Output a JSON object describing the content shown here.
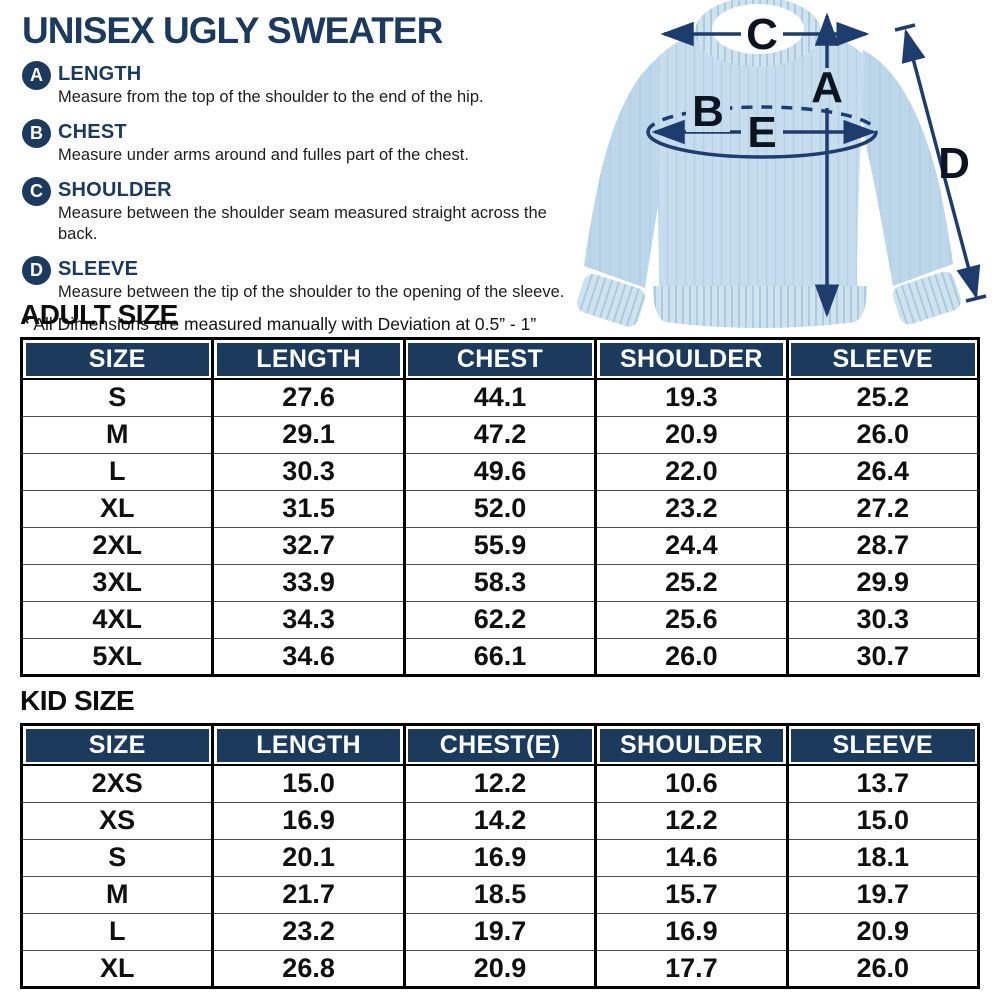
{
  "title": "UNISEX UGLY SWEATER",
  "measurements": [
    {
      "letter": "A",
      "term": "LENGTH",
      "description": "Measure from the top of the shoulder to the end of the hip."
    },
    {
      "letter": "B",
      "term": "CHEST",
      "description": "Measure under arms around and fulles part of the chest."
    },
    {
      "letter": "C",
      "term": "SHOULDER",
      "description": "Measure between the shoulder seam measured straight across the back."
    },
    {
      "letter": "D",
      "term": "SLEEVE",
      "description": "Measure between the tip of the shoulder to the opening of the sleeve."
    }
  ],
  "note_prefix": "*",
  "note": "All Dimensions are measured manually with Deviation at 0.5” - 1”",
  "diagram": {
    "labels": {
      "a": "A",
      "b": "B",
      "c": "C",
      "d": "D",
      "e": "E"
    }
  },
  "adult": {
    "heading": "ADULT SIZE",
    "headers": [
      "SIZE",
      "LENGTH",
      "CHEST",
      "SHOULDER",
      "SLEEVE"
    ],
    "rows": [
      [
        "S",
        "27.6",
        "44.1",
        "19.3",
        "25.2"
      ],
      [
        "M",
        "29.1",
        "47.2",
        "20.9",
        "26.0"
      ],
      [
        "L",
        "30.3",
        "49.6",
        "22.0",
        "26.4"
      ],
      [
        "XL",
        "31.5",
        "52.0",
        "23.2",
        "27.2"
      ],
      [
        "2XL",
        "32.7",
        "55.9",
        "24.4",
        "28.7"
      ],
      [
        "3XL",
        "33.9",
        "58.3",
        "25.2",
        "29.9"
      ],
      [
        "4XL",
        "34.3",
        "62.2",
        "25.6",
        "30.3"
      ],
      [
        "5XL",
        "34.6",
        "66.1",
        "26.0",
        "30.7"
      ]
    ]
  },
  "kid": {
    "heading": "KID SIZE",
    "headers": [
      "SIZE",
      "LENGTH",
      "CHEST(E)",
      "SHOULDER",
      "SLEEVE"
    ],
    "rows": [
      [
        "2XS",
        "15.0",
        "12.2",
        "10.6",
        "13.7"
      ],
      [
        "XS",
        "16.9",
        "14.2",
        "12.2",
        "15.0"
      ],
      [
        "S",
        "20.1",
        "16.9",
        "14.6",
        "18.1"
      ],
      [
        "M",
        "21.7",
        "18.5",
        "15.7",
        "19.7"
      ],
      [
        "L",
        "23.2",
        "19.7",
        "16.9",
        "20.9"
      ],
      [
        "XL",
        "26.8",
        "20.9",
        "17.7",
        "26.0"
      ]
    ]
  },
  "colors": {
    "navy": "#1b3a5e",
    "header_bg": "#1b3a5c",
    "arrow": "#1e3d6e",
    "sweater_body": "#c6ddee",
    "sweater_sleeve": "#bdd7ea",
    "sweater_rib": "#cfe2f0",
    "text_black": "#101010"
  }
}
